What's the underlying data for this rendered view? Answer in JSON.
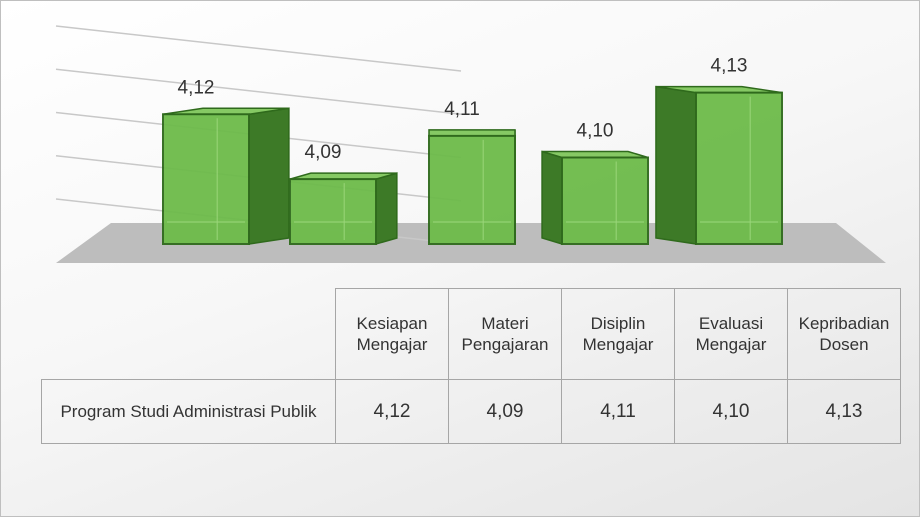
{
  "chart_data": {
    "type": "bar3d",
    "categories": [
      "Kesiapan Mengajar",
      "Materi Pengajaran",
      "Disiplin Mengajar",
      "Evaluasi Mengajar",
      "Kepribadian Dosen"
    ],
    "series": [
      {
        "name": "Program Studi Administrasi Publik",
        "color": "#6dbb4a",
        "values": [
          4.12,
          4.09,
          4.11,
          4.1,
          4.13
        ],
        "value_labels": [
          "4,12",
          "4,09",
          "4,11",
          "4,10",
          "4,13"
        ]
      }
    ],
    "ylim": [
      4.06,
      4.14
    ],
    "yticks": [
      4.06,
      4.08,
      4.1,
      4.12,
      4.14
    ],
    "grid": true
  }
}
